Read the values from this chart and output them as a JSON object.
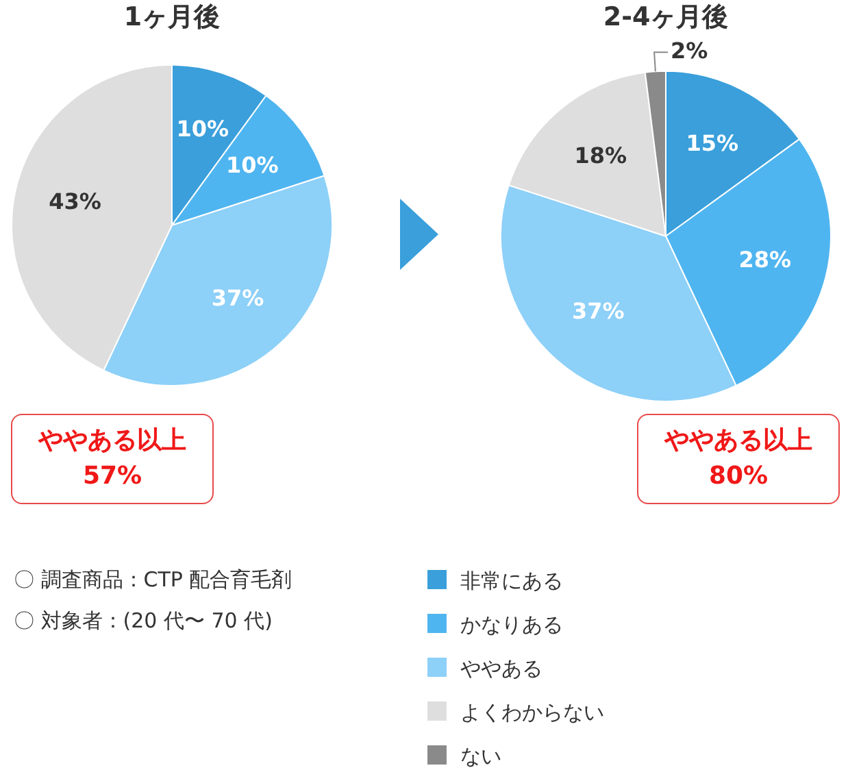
{
  "chart_data": [
    {
      "type": "pie",
      "title": "1ヶ月後",
      "categories": [
        null,
        null,
        null,
        null
      ],
      "values": [
        10,
        10,
        37,
        43
      ],
      "value_labels": [
        "10%",
        "10%",
        "37%",
        "43%"
      ],
      "colors": [
        "#3a9fdb",
        "#4fb5f0",
        "#8dd0f8",
        "#dedede"
      ],
      "annotations": [
        "ややある以上\n57%",
        "〇 調査商品：CTP 配合育毛剤",
        "〇 対象者：(20 代〜 70 代)"
      ]
    },
    {
      "type": "pie",
      "title": "2-4ヶ月後",
      "categories": [
        "非常にある",
        "かなりある",
        "ややある",
        "よくわからない",
        "ない"
      ],
      "values": [
        15,
        28,
        37,
        18,
        2
      ],
      "value_labels": [
        "15%",
        "28%",
        "37%",
        "18%",
        "2%"
      ],
      "colors": [
        "#3a9fdb",
        "#4fb5f0",
        "#8dd0f8",
        "#dedede",
        "#8a8a8a"
      ],
      "legend": "bottom",
      "annotations": [
        "ややある以上\n80%"
      ]
    }
  ]
}
